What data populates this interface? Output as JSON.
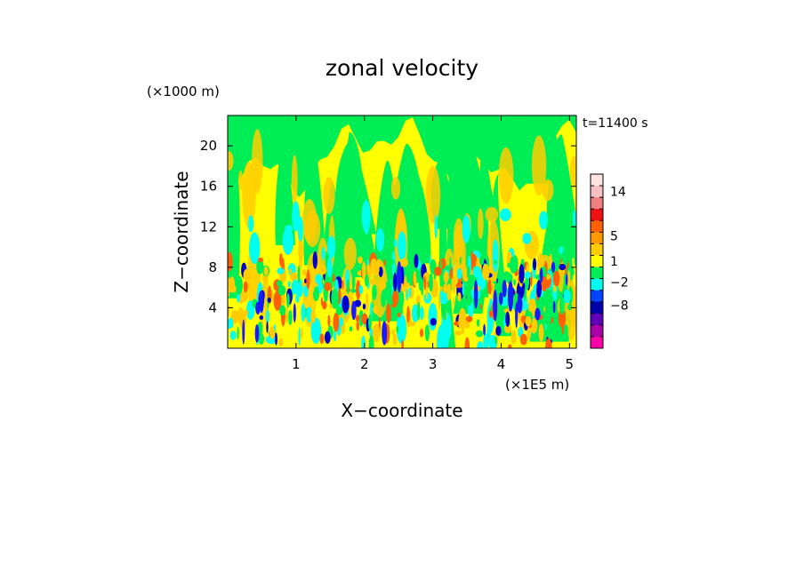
{
  "chart_data": {
    "type": "heatmap",
    "title": "zonal velocity",
    "xlabel": "X−coordinate",
    "ylabel": "Z−coordinate",
    "x_unit": "(×1E5 m)",
    "y_unit": "(×1000 m)",
    "time_label": "t=11400 s",
    "xlim": [
      0,
      5.1
    ],
    "ylim": [
      0,
      23
    ],
    "x_ticks": [
      "1",
      "2",
      "3",
      "4",
      "5"
    ],
    "x_tick_values": [
      1,
      2,
      3,
      4,
      5
    ],
    "y_ticks": [
      "4",
      "8",
      "12",
      "16",
      "20"
    ],
    "y_tick_values": [
      4,
      8,
      12,
      16,
      20
    ],
    "grid": false,
    "colorbar": {
      "labels": [
        "14",
        "5",
        "1",
        "−2",
        "−8"
      ],
      "colors": [
        "#ffe4e1",
        "#f8c0c0",
        "#f08080",
        "#ee1111",
        "#ff6000",
        "#ff9900",
        "#ffcc00",
        "#ffff00",
        "#00ee55",
        "#00ffee",
        "#0044ff",
        "#0000aa",
        "#6000bb",
        "#aa00aa",
        "#ff00aa"
      ]
    },
    "field_colors": {
      "background": "#ffff00",
      "upper_band": "#00ee55",
      "cyan": "#00ffee",
      "orange": "#ffcc00",
      "red": "#ff6000",
      "blue": "#0000cc"
    }
  }
}
